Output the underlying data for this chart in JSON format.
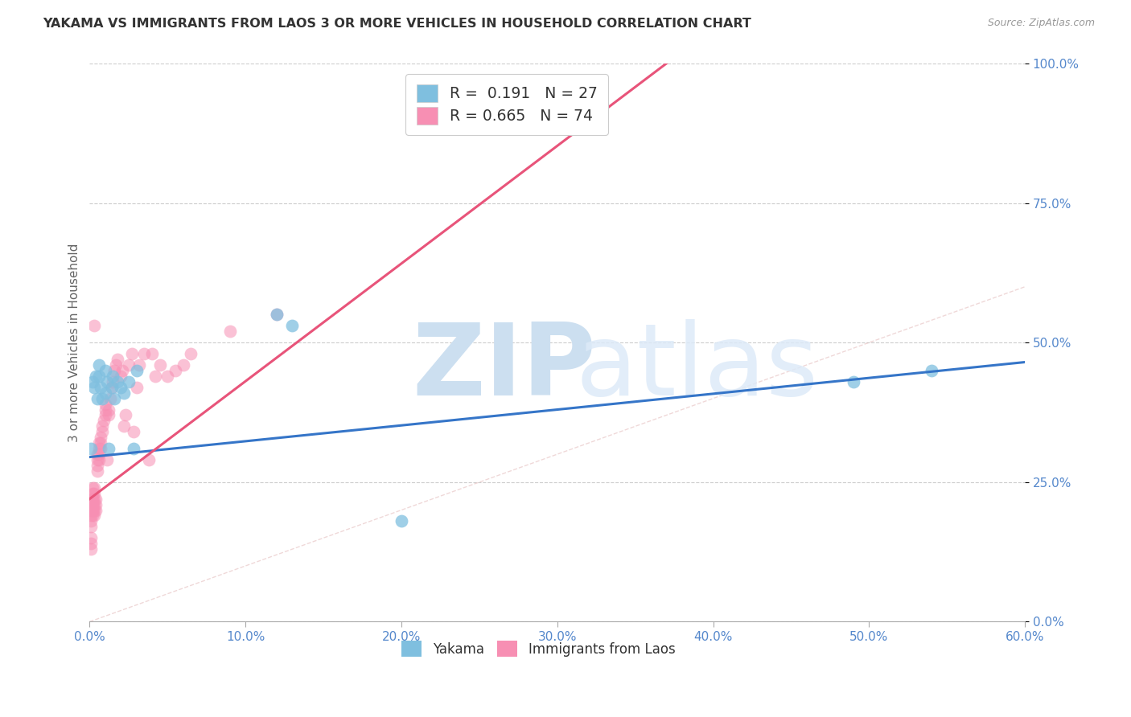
{
  "title": "YAKAMA VS IMMIGRANTS FROM LAOS 3 OR MORE VEHICLES IN HOUSEHOLD CORRELATION CHART",
  "source": "Source: ZipAtlas.com",
  "ylabel_label": "3 or more Vehicles in Household",
  "xlim": [
    0.0,
    0.6
  ],
  "ylim": [
    0.0,
    1.0
  ],
  "legend_label1": "Yakama",
  "legend_label2": "Immigrants from Laos",
  "r1": 0.191,
  "n1": 27,
  "r2": 0.665,
  "n2": 74,
  "color_blue": "#7fbfdf",
  "color_pink": "#f78fb3",
  "color_blue_line": "#3575c8",
  "color_pink_line": "#e8547a",
  "watermark_zip_color": "#ccdff0",
  "watermark_atlas_color": "#ddeaf8",
  "background_color": "#ffffff",
  "grid_color": "#cccccc",
  "yakama_x": [
    0.001,
    0.002,
    0.003,
    0.004,
    0.005,
    0.006,
    0.006,
    0.007,
    0.008,
    0.01,
    0.01,
    0.011,
    0.012,
    0.014,
    0.015,
    0.016,
    0.018,
    0.02,
    0.022,
    0.025,
    0.028,
    0.03,
    0.12,
    0.13,
    0.2,
    0.49,
    0.54
  ],
  "yakama_y": [
    0.31,
    0.43,
    0.42,
    0.44,
    0.4,
    0.46,
    0.44,
    0.42,
    0.4,
    0.45,
    0.41,
    0.43,
    0.31,
    0.42,
    0.44,
    0.4,
    0.43,
    0.42,
    0.41,
    0.43,
    0.31,
    0.45,
    0.55,
    0.53,
    0.18,
    0.43,
    0.45
  ],
  "laos_x": [
    0.001,
    0.001,
    0.001,
    0.001,
    0.001,
    0.001,
    0.001,
    0.001,
    0.001,
    0.002,
    0.002,
    0.002,
    0.002,
    0.002,
    0.002,
    0.002,
    0.002,
    0.002,
    0.003,
    0.003,
    0.003,
    0.003,
    0.003,
    0.003,
    0.003,
    0.004,
    0.004,
    0.004,
    0.005,
    0.005,
    0.005,
    0.005,
    0.006,
    0.006,
    0.006,
    0.006,
    0.007,
    0.007,
    0.007,
    0.008,
    0.008,
    0.009,
    0.01,
    0.01,
    0.01,
    0.011,
    0.012,
    0.012,
    0.013,
    0.014,
    0.015,
    0.016,
    0.017,
    0.018,
    0.02,
    0.021,
    0.022,
    0.023,
    0.025,
    0.027,
    0.028,
    0.03,
    0.032,
    0.035,
    0.038,
    0.04,
    0.042,
    0.045,
    0.05,
    0.055,
    0.06,
    0.065,
    0.09,
    0.12
  ],
  "laos_y": [
    0.22,
    0.21,
    0.2,
    0.19,
    0.18,
    0.17,
    0.15,
    0.14,
    0.13,
    0.22,
    0.21,
    0.2,
    0.19,
    0.22,
    0.23,
    0.24,
    0.21,
    0.2,
    0.24,
    0.23,
    0.22,
    0.21,
    0.2,
    0.19,
    0.53,
    0.22,
    0.21,
    0.2,
    0.29,
    0.28,
    0.27,
    0.3,
    0.32,
    0.31,
    0.3,
    0.29,
    0.33,
    0.32,
    0.31,
    0.35,
    0.34,
    0.36,
    0.39,
    0.38,
    0.37,
    0.29,
    0.38,
    0.37,
    0.4,
    0.42,
    0.43,
    0.45,
    0.46,
    0.47,
    0.44,
    0.45,
    0.35,
    0.37,
    0.46,
    0.48,
    0.34,
    0.42,
    0.46,
    0.48,
    0.29,
    0.48,
    0.44,
    0.46,
    0.44,
    0.45,
    0.46,
    0.48,
    0.52,
    0.55
  ]
}
